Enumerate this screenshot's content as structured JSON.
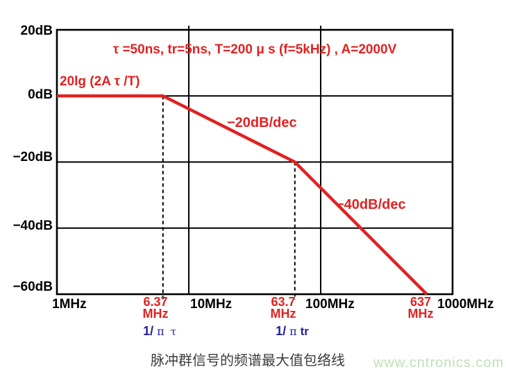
{
  "page": {
    "background": "#ffffff"
  },
  "chart_data": {
    "type": "line",
    "title": "",
    "caption": "脉冲群信号的频谱最大值包络线",
    "x_axis": {
      "unit": "MHz",
      "scale": "log",
      "min": 1,
      "max": 1000,
      "ticks": [
        1,
        10,
        100,
        1000
      ],
      "tick_labels": [
        "1MHz",
        "10MHz",
        "100MHz",
        "1000MHz"
      ]
    },
    "y_axis": {
      "unit": "dB",
      "scale": "linear",
      "min": -60,
      "max": 20,
      "ticks": [
        20,
        0,
        -20,
        -40,
        -60
      ],
      "tick_labels": [
        "20dB",
        "0dB",
        "−20dB",
        "−40dB",
        "−60dB"
      ]
    },
    "grid": true,
    "legend": "none",
    "series": [
      {
        "name": "spectrum-max-envelope",
        "color": "#e02222",
        "points": [
          [
            1,
            0
          ],
          [
            6.37,
            0
          ],
          [
            63.7,
            -20
          ],
          [
            637,
            -60
          ]
        ]
      }
    ],
    "breakpoints": [
      {
        "freq_mhz": 6.37,
        "label_top": "6.37",
        "label_bottom": "MHz",
        "sub_label": {
          "prefix": "1/",
          "pi": "π",
          "suffix": "τ"
        },
        "dash_from_db": 0
      },
      {
        "freq_mhz": 63.7,
        "label_top": "63.7",
        "label_bottom": "MHz",
        "sub_label": {
          "prefix": "1/",
          "pi": "π",
          "suffix": "tr"
        },
        "dash_from_db": -20
      },
      {
        "freq_mhz": 637,
        "label_top": "637",
        "label_bottom": "MHz",
        "dash_from_db": null
      }
    ],
    "annotations": {
      "conditions": "τ =50ns, tr=5ns, T=200 μ s (f=5kHz) , A=2000V",
      "flat_level": "20lg (2A τ /T)",
      "slope1": "−20dB/dec",
      "slope2": "−40dB/dec"
    }
  },
  "watermark": "www.cntronics.com",
  "colors": {
    "accent_red": "#e02222",
    "navy_blue": "#1f1f9c",
    "grid_black": "#000000",
    "caption_gray": "#3c3c3c",
    "watermark_green": "#bfe0b4"
  }
}
